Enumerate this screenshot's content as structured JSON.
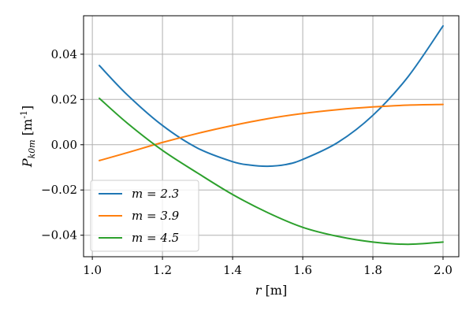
{
  "chart_data": {
    "type": "line",
    "xlabel": "r [m]",
    "ylabel": "P_{k0m} [m^{-1}]",
    "xlim": [
      0.975,
      2.045
    ],
    "ylim": [
      -0.0495,
      0.057
    ],
    "xticks": [
      1.0,
      1.2,
      1.4,
      1.6,
      1.8,
      2.0
    ],
    "xtick_labels": [
      "1.0",
      "1.2",
      "1.4",
      "1.6",
      "1.8",
      "2.0"
    ],
    "yticks": [
      -0.04,
      -0.02,
      0.0,
      0.02,
      0.04
    ],
    "ytick_labels": [
      "−0.04",
      "−0.02",
      "0.00",
      "0.02",
      "0.04"
    ],
    "grid": true,
    "legend_position": "lower-left",
    "series": [
      {
        "name": "m = 2.3",
        "color": "#1f77b4",
        "x": [
          1.02,
          1.1,
          1.2,
          1.3,
          1.4,
          1.45,
          1.5,
          1.55,
          1.6,
          1.7,
          1.8,
          1.9,
          2.0
        ],
        "y": [
          0.035,
          0.022,
          0.0085,
          -0.0015,
          -0.0075,
          -0.009,
          -0.0095,
          -0.0088,
          -0.0065,
          0.001,
          0.013,
          0.03,
          0.0525
        ]
      },
      {
        "name": "m = 3.9",
        "color": "#ff7f0e",
        "x": [
          1.02,
          1.1,
          1.2,
          1.3,
          1.4,
          1.5,
          1.6,
          1.7,
          1.8,
          1.9,
          2.0
        ],
        "y": [
          -0.007,
          -0.0035,
          0.001,
          0.005,
          0.0085,
          0.0115,
          0.0138,
          0.0155,
          0.0167,
          0.0175,
          0.0178
        ]
      },
      {
        "name": "m = 4.5",
        "color": "#2ca02c",
        "x": [
          1.02,
          1.1,
          1.2,
          1.3,
          1.4,
          1.5,
          1.6,
          1.7,
          1.8,
          1.9,
          2.0
        ],
        "y": [
          0.0205,
          0.0095,
          -0.0025,
          -0.0125,
          -0.022,
          -0.03,
          -0.0365,
          -0.0405,
          -0.043,
          -0.044,
          -0.043
        ]
      }
    ]
  }
}
